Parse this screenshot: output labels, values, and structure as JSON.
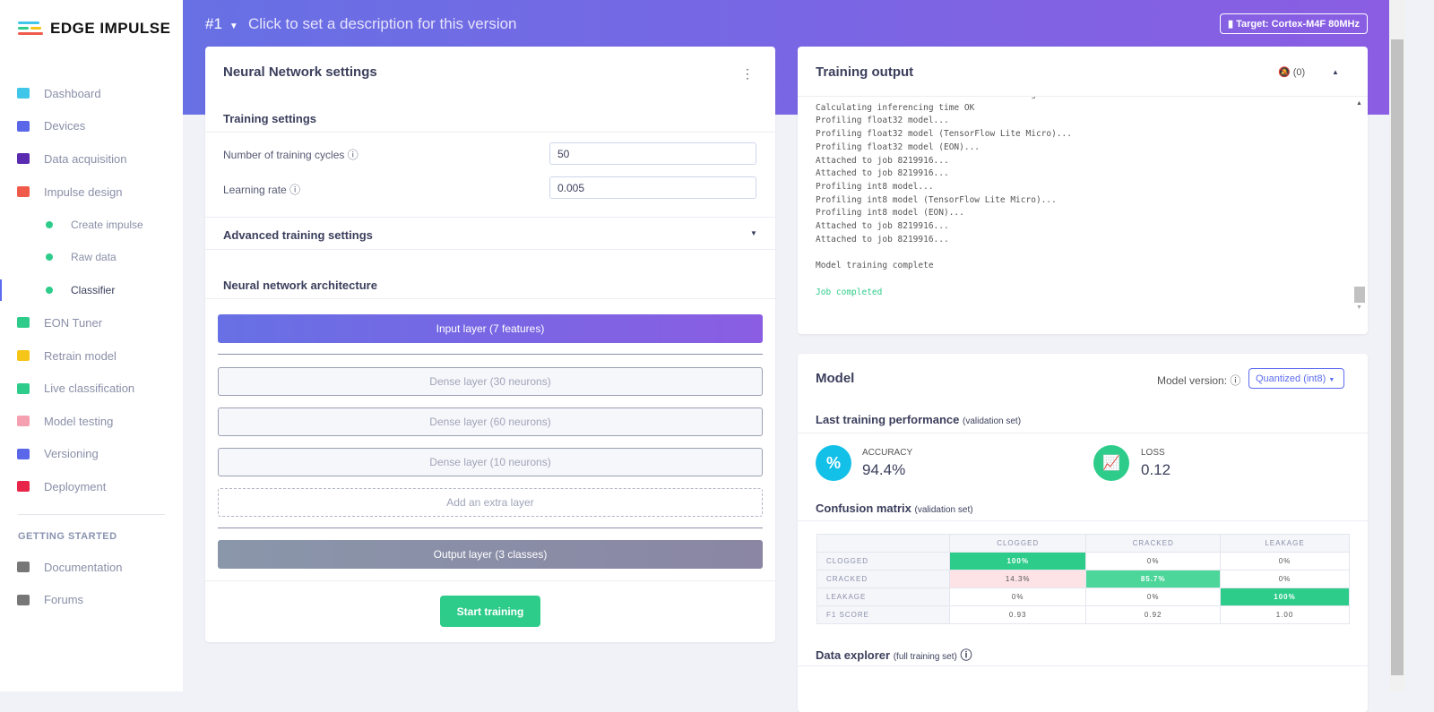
{
  "brand": "EDGE IMPULSE",
  "sidebar": {
    "items": [
      {
        "label": "Dashboard",
        "icon": "monitor-icon",
        "color": "#3fc6e8"
      },
      {
        "label": "Devices",
        "icon": "chip-icon",
        "color": "#5a67e8"
      },
      {
        "label": "Data acquisition",
        "icon": "database-icon",
        "color": "#5a2ab0"
      },
      {
        "label": "Impulse design",
        "icon": "pulse-icon",
        "color": "#f05a4a"
      },
      {
        "label": "Create impulse",
        "sub": true
      },
      {
        "label": "Raw data",
        "sub": true
      },
      {
        "label": "Classifier",
        "sub": true,
        "active": true
      },
      {
        "label": "EON Tuner",
        "icon": "compass-icon",
        "color": "#2ecc8a"
      },
      {
        "label": "Retrain model",
        "icon": "shuffle-icon",
        "color": "#f5c518"
      },
      {
        "label": "Live classification",
        "icon": "bezier-icon",
        "color": "#2ecc8a"
      },
      {
        "label": "Model testing",
        "icon": "clipboard-check-icon",
        "color": "#f5a0b0"
      },
      {
        "label": "Versioning",
        "icon": "branch-icon",
        "color": "#5a67e8"
      },
      {
        "label": "Deployment",
        "icon": "cube-icon",
        "color": "#e8264a"
      }
    ],
    "section": "GETTING STARTED",
    "extra": [
      {
        "label": "Documentation",
        "icon": "rocket-icon"
      },
      {
        "label": "Forums",
        "icon": "comments-icon"
      }
    ]
  },
  "header": {
    "version": "#1",
    "description": "Click to set a description for this version",
    "target": "Target: Cortex-M4F 80MHz"
  },
  "nn": {
    "title": "Neural Network settings",
    "training_settings": "Training settings",
    "cycles_label": "Number of training cycles",
    "cycles": "50",
    "lr_label": "Learning rate",
    "lr": "0.005",
    "advanced": "Advanced training settings",
    "arch": "Neural network architecture",
    "input_layer": "Input layer (7 features)",
    "layers": [
      "Dense layer (30 neurons)",
      "Dense layer (60 neurons)",
      "Dense layer (10 neurons)"
    ],
    "add_layer": "Add an extra layer",
    "output_layer": "Output layer (3 classes)",
    "start": "Start training"
  },
  "output": {
    "title": "Training output",
    "notif": "(0)",
    "lines": [
      "INFO: Created TensorFlow Lite XNNPACK delegate for CPU.",
      "Calculating inferencing time OK",
      "Profiling float32 model...",
      "Profiling float32 model (TensorFlow Lite Micro)...",
      "Profiling float32 model (EON)...",
      "Attached to job 8219916...",
      "Attached to job 8219916...",
      "Profiling int8 model...",
      "Profiling int8 model (TensorFlow Lite Micro)...",
      "Profiling int8 model (EON)...",
      "Attached to job 8219916...",
      "Attached to job 8219916...",
      "",
      "Model training complete",
      ""
    ],
    "done": "Job completed"
  },
  "model": {
    "title": "Model",
    "version_label": "Model version:",
    "version": "Quantized (int8)",
    "perf": "Last training performance",
    "perf_note": "(validation set)",
    "accuracy_label": "ACCURACY",
    "accuracy": "94.4%",
    "loss_label": "LOSS",
    "loss": "0.12",
    "cm_title": "Confusion matrix",
    "cm_note": "(validation set)",
    "cm_cols": [
      "CLOGGED",
      "CRACKED",
      "LEAKAGE"
    ],
    "cm_rows": [
      {
        "label": "CLOGGED",
        "cells": [
          "100%",
          "0%",
          "0%"
        ]
      },
      {
        "label": "CRACKED",
        "cells": [
          "14.3%",
          "85.7%",
          "0%"
        ]
      },
      {
        "label": "LEAKAGE",
        "cells": [
          "0%",
          "0%",
          "100%"
        ]
      },
      {
        "label": "F1 SCORE",
        "cells": [
          "0.93",
          "0.92",
          "1.00"
        ]
      }
    ],
    "explorer": "Data explorer",
    "explorer_note": "(full training set)"
  }
}
